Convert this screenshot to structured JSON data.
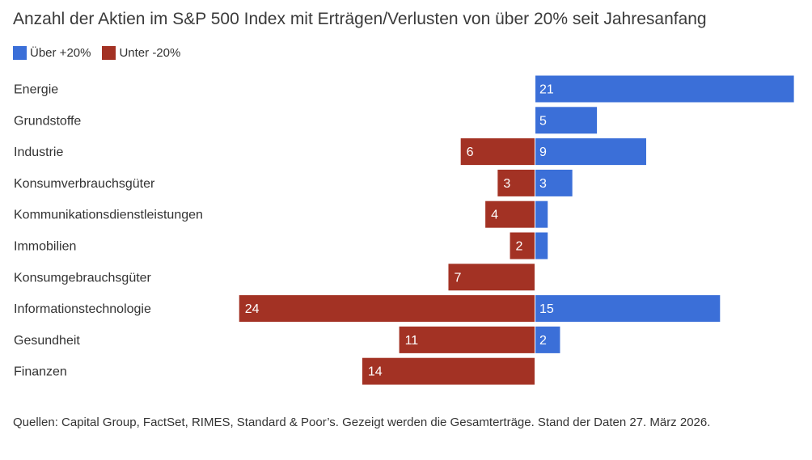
{
  "title": "Anzahl der Aktien im S&P 500 Index mit Erträgen/Verlusten von über 20% seit Jahresanfang",
  "legend": {
    "positive_label": "Über +20%",
    "negative_label": "Unter -20%"
  },
  "colors": {
    "positive": "#3b6fd8",
    "negative": "#a33224"
  },
  "chart_data": {
    "type": "bar",
    "orientation": "horizontal-diverging",
    "categories": [
      "Energie",
      "Grundstoffe",
      "Industrie",
      "Konsumverbrauchsgüter",
      "Kommunikationsdienstleistungen",
      "Immobilien",
      "Konsumgebrauchsgüter",
      "Informationstechnologie",
      "Gesundheit",
      "Finanzen"
    ],
    "series": [
      {
        "name": "Über +20%",
        "values": [
          21,
          5,
          9,
          3,
          1,
          1,
          0,
          15,
          2,
          0
        ],
        "labels": [
          "21",
          "5",
          "9",
          "3",
          "",
          "",
          "",
          "15",
          "2",
          ""
        ]
      },
      {
        "name": "Unter -20%",
        "values": [
          0,
          0,
          6,
          3,
          4,
          2,
          7,
          24,
          11,
          14
        ],
        "labels": [
          "",
          "",
          "6",
          "3",
          "4",
          "2",
          "7",
          "24",
          "11",
          "14"
        ]
      }
    ],
    "legend_position": "top-left",
    "grid": false
  },
  "source": "Quellen: Capital Group, FactSet, RIMES, Standard & Poor’s. Gezeigt werden die Gesamterträge. Stand der Daten 27. März 2026."
}
